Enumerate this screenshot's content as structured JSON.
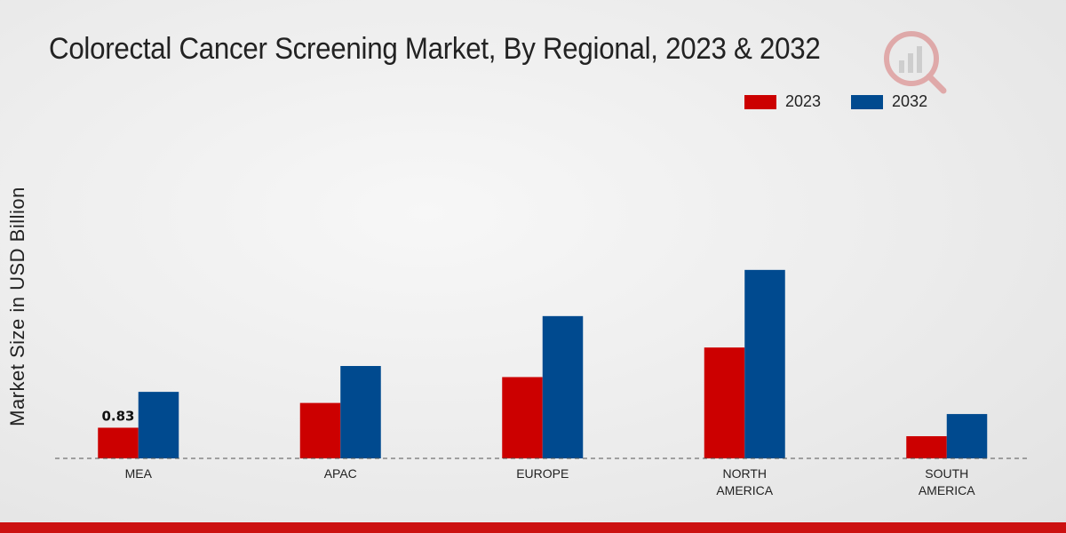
{
  "chart_data": {
    "type": "bar",
    "title": "Colorectal Cancer Screening Market, By Regional, 2023 & 2032",
    "xlabel": "",
    "ylabel": "Market Size in USD Billion",
    "categories": [
      [
        "MEA"
      ],
      [
        "APAC"
      ],
      [
        "EUROPE"
      ],
      [
        "NORTH",
        "AMERICA"
      ],
      [
        "SOUTH",
        "AMERICA"
      ]
    ],
    "series": [
      {
        "name": "2023",
        "color": "#cc0000",
        "values": [
          0.83,
          1.5,
          2.2,
          3.0,
          0.6
        ]
      },
      {
        "name": "2032",
        "color": "#004a8f",
        "values": [
          1.8,
          2.5,
          3.85,
          5.1,
          1.2
        ]
      }
    ],
    "data_labels": [
      {
        "series": 0,
        "index": 0,
        "text": "0.83"
      }
    ],
    "ylim": [
      0,
      7.3
    ],
    "grid": false,
    "legend_position": "top-right"
  }
}
